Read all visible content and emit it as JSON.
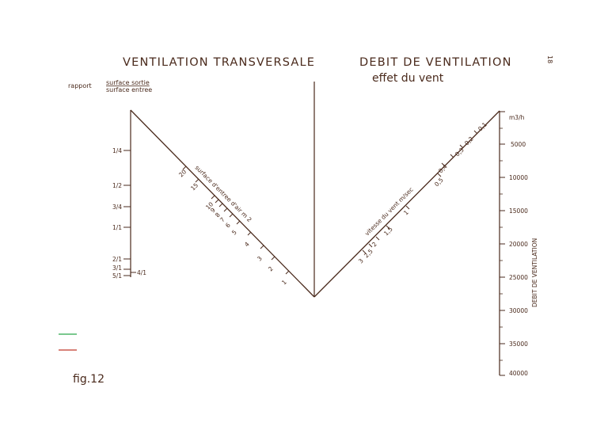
{
  "titles": {
    "left": "VENTILATION TRANSVERSALE",
    "right": "DEBIT DE VENTILATION",
    "right_sub": "effet du vent",
    "page_number": "18",
    "figure_label": "fig.12"
  },
  "ratio_label": {
    "prefix": "rapport",
    "numerator": "surface sortie",
    "denominator": "surface entree"
  },
  "left_scale": {
    "ticks": [
      "1/4",
      "1/2",
      "3/4",
      "1/1",
      "2/1",
      "3/1",
      "5/1",
      "4/1"
    ]
  },
  "left_diagonal": {
    "label": "surface d'entree d'air  m 2",
    "ticks": [
      "20",
      "15",
      "10",
      "9",
      "8",
      "7",
      "6",
      "5",
      "4",
      "3",
      "2",
      "1"
    ]
  },
  "right_diagonal": {
    "label": "vitesse du vent  m/sec",
    "ticks": [
      "0,1",
      "0,2",
      "0,3",
      "0,4",
      "0,5",
      "1",
      "1,5",
      "2",
      "2,5",
      "3"
    ]
  },
  "right_scale": {
    "unit": "m3/h",
    "axis_label": "DEBIT DE VENTILATION",
    "ticks": [
      "5000",
      "10000",
      "15000",
      "20000",
      "25000",
      "30000",
      "35000",
      "40000"
    ]
  },
  "legend_colors": {
    "green": "#2aa84a",
    "red": "#c0392b"
  }
}
